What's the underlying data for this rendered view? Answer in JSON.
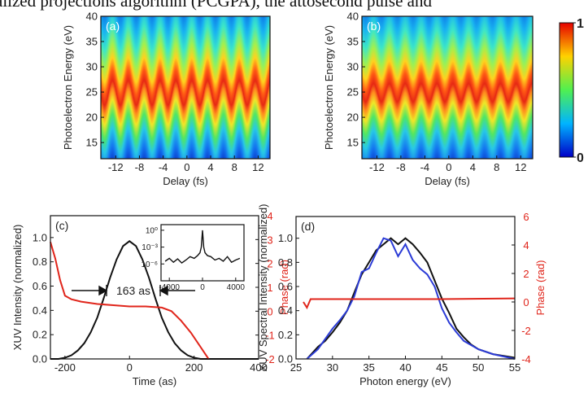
{
  "caption_fragment": "alized projections algorithm (PCGPA), the attosecond pulse and",
  "chart_data": [
    {
      "type": "heatmap",
      "panel_label": "(a)",
      "xlabel": "Delay (fs)",
      "ylabel": "Photoelectron Energy (eV)",
      "xlim": [
        -14.5,
        14
      ],
      "ylim": [
        11.8,
        40
      ],
      "xticks": [
        -12,
        -8,
        -4,
        0,
        4,
        8,
        12
      ],
      "yticks": [
        15,
        20,
        25,
        30,
        35,
        40
      ]
    },
    {
      "type": "heatmap",
      "panel_label": "(b)",
      "xlabel": "Delay (fs)",
      "ylabel": "Photoelectron Energy (eV)",
      "xlim": [
        -14.5,
        14
      ],
      "ylim": [
        11.8,
        40
      ],
      "xticks": [
        -12,
        -8,
        -4,
        0,
        4,
        8,
        12
      ],
      "yticks": [
        15,
        20,
        25,
        30,
        35,
        40
      ],
      "colorbar_ticks": [
        0,
        1
      ]
    },
    {
      "type": "line",
      "panel_label": "(c)",
      "xlabel": "Time (as)",
      "ylabel": "XUV Intensity (normalized)",
      "y2label": "Phase (rad)",
      "xlim": [
        -245,
        400
      ],
      "ylim": [
        0,
        1.18
      ],
      "y2lim": [
        -2,
        4
      ],
      "xticks": [
        -200,
        0,
        200,
        400
      ],
      "yticks": [
        {
          "value": 0,
          "label": "0.0"
        },
        {
          "value": 0.2,
          "label": "0.2"
        },
        {
          "value": 0.4,
          "label": "0.4"
        },
        {
          "value": 0.6,
          "label": "0.6"
        },
        {
          "value": 0.8,
          "label": "0.8"
        },
        {
          "value": 1,
          "label": "1.0"
        }
      ],
      "y2ticks": [
        -2,
        -1,
        0,
        1,
        2,
        3,
        4
      ],
      "annotation": "163 as",
      "series": [
        {
          "color": "#111111",
          "x": [
            -245,
            -220,
            -200,
            -180,
            -160,
            -140,
            -120,
            -100,
            -80,
            -60,
            -40,
            -20,
            0,
            20,
            40,
            60,
            80,
            100,
            120,
            140,
            160,
            180,
            200,
            220,
            260,
            300,
            400
          ],
          "values": [
            0,
            0,
            0.01,
            0.03,
            0.07,
            0.13,
            0.22,
            0.34,
            0.5,
            0.67,
            0.82,
            0.93,
            0.97,
            0.93,
            0.82,
            0.67,
            0.5,
            0.34,
            0.22,
            0.13,
            0.07,
            0.03,
            0.01,
            0,
            0,
            0,
            0
          ]
        },
        {
          "color": "#e0251b",
          "axis": "y2",
          "x": [
            -245,
            -230,
            -215,
            -200,
            -180,
            -150,
            -100,
            -50,
            0,
            50,
            100,
            130,
            160,
            190,
            220,
            245
          ],
          "values": [
            2.9,
            2.2,
            1.3,
            0.65,
            0.5,
            0.4,
            0.3,
            0.25,
            0.2,
            0.2,
            0.15,
            0,
            -0.4,
            -0.9,
            -1.5,
            -2
          ]
        }
      ],
      "inset": {
        "type": "line",
        "log_y": true,
        "xlim": [
          -5000,
          5000
        ],
        "ylim": [
          1e-09,
          10
        ],
        "xticks": [
          -4000,
          0,
          4000
        ],
        "yticks": [
          {
            "value": 1,
            "label": "10⁰"
          },
          {
            "value": 0.001,
            "label": "10⁻³"
          },
          {
            "value": 1e-06,
            "label": "10⁻⁶"
          }
        ],
        "series": [
          {
            "color": "#111111",
            "x": [
              -4500,
              -4000,
              -3500,
              -3000,
              -2500,
              -2000,
              -1500,
              -1000,
              -600,
              -300,
              -150,
              0,
              150,
              300,
              600,
              1000,
              1500,
              2000,
              2500,
              3000,
              3500,
              4000,
              4500
            ],
            "values": [
              3e-06,
              1e-05,
              2e-06,
              8e-06,
              1.5e-06,
              5e-06,
              2e-05,
              1e-05,
              3e-05,
              0.0001,
              0.001,
              1,
              0.001,
              0.0001,
              3e-05,
              2e-05,
              5e-06,
              1e-05,
              3e-06,
              2e-05,
              2e-06,
              5e-06,
              1e-05
            ]
          }
        ]
      }
    },
    {
      "type": "line",
      "panel_label": "(d)",
      "xlabel": "Photon energy (eV)",
      "ylabel": "XUV Spectral Intensity (normalized)",
      "y2label": "Phase (rad)",
      "xlim": [
        25,
        55
      ],
      "ylim": [
        0,
        1.18
      ],
      "y2lim": [
        -4,
        6
      ],
      "xticks": [
        25,
        30,
        35,
        40,
        45,
        50,
        55
      ],
      "yticks": [
        {
          "value": 0,
          "label": "0.0"
        },
        {
          "value": 0.2,
          "label": "0.2"
        },
        {
          "value": 0.4,
          "label": "0.4"
        },
        {
          "value": 0.6,
          "label": "0.6"
        },
        {
          "value": 0.8,
          "label": "0.8"
        },
        {
          "value": 1,
          "label": "1.0"
        }
      ],
      "y2ticks": [
        -4,
        -2,
        0,
        2,
        4,
        6
      ],
      "series": [
        {
          "color": "#111111",
          "x": [
            26.5,
            28,
            29,
            30,
            31,
            32,
            33,
            34,
            35,
            36,
            37,
            38,
            39,
            40,
            41,
            42,
            43,
            44,
            45,
            46,
            47,
            48,
            49,
            50,
            52,
            55
          ],
          "values": [
            0,
            0.1,
            0.15,
            0.22,
            0.3,
            0.4,
            0.55,
            0.7,
            0.8,
            0.9,
            0.95,
            1,
            0.95,
            1,
            0.95,
            0.88,
            0.8,
            0.65,
            0.5,
            0.38,
            0.25,
            0.18,
            0.12,
            0.08,
            0.04,
            0.01
          ]
        },
        {
          "color": "#2b3bd6",
          "x": [
            26.5,
            28,
            30,
            31,
            32,
            33,
            34,
            35,
            36,
            37,
            38,
            39,
            40,
            41,
            42,
            43,
            44,
            45,
            46,
            47,
            48,
            50,
            52,
            55
          ],
          "values": [
            0,
            0.08,
            0.25,
            0.32,
            0.4,
            0.52,
            0.72,
            0.75,
            0.88,
            1,
            0.98,
            0.85,
            0.95,
            0.82,
            0.75,
            0.7,
            0.6,
            0.42,
            0.3,
            0.22,
            0.15,
            0.08,
            0.04,
            0
          ]
        },
        {
          "color": "#e0251b",
          "axis": "y2",
          "x": [
            26,
            26.5,
            27,
            28,
            35,
            45,
            55
          ],
          "values": [
            0,
            -0.4,
            0.2,
            0.2,
            0.2,
            0.2,
            0.25
          ]
        }
      ]
    }
  ]
}
